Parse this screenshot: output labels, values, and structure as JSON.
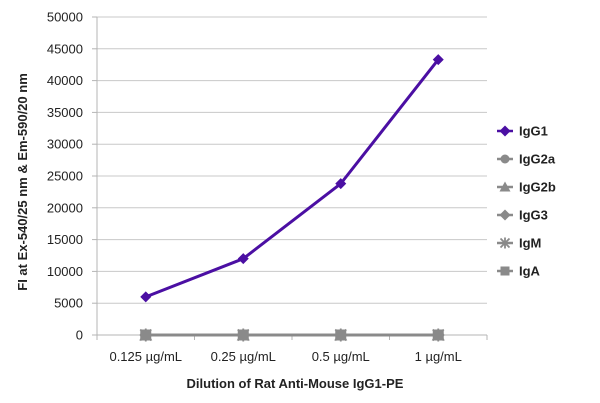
{
  "chart_data": {
    "type": "line",
    "xlabel": "Dilution of Rat Anti-Mouse IgG1-PE",
    "ylabel": "FI at Ex-540/25 nm & Em-590/20 nm",
    "categories": [
      "0.125 µg/mL",
      "0.25 µg/mL",
      "0.5 µg/mL",
      "1 µg/mL"
    ],
    "ylim": [
      0,
      50000
    ],
    "yticks": [
      0,
      5000,
      10000,
      15000,
      20000,
      25000,
      30000,
      35000,
      40000,
      45000,
      50000
    ],
    "grid": true,
    "legend_position": "right",
    "series": [
      {
        "name": "IgG1",
        "values": [
          6000,
          12000,
          23800,
          43300
        ],
        "color": "#4b0fa3",
        "marker": "diamond"
      },
      {
        "name": "IgG2a",
        "values": [
          0,
          0,
          0,
          0
        ],
        "color": "#8a8a8a",
        "marker": "circle"
      },
      {
        "name": "IgG2b",
        "values": [
          0,
          0,
          0,
          0
        ],
        "color": "#8a8a8a",
        "marker": "triangle"
      },
      {
        "name": "IgG3",
        "values": [
          0,
          0,
          0,
          0
        ],
        "color": "#8a8a8a",
        "marker": "diamond"
      },
      {
        "name": "IgM",
        "values": [
          0,
          0,
          0,
          0
        ],
        "color": "#8a8a8a",
        "marker": "asterisk"
      },
      {
        "name": "IgA",
        "values": [
          0,
          0,
          0,
          0
        ],
        "color": "#8a8a8a",
        "marker": "square"
      }
    ]
  }
}
